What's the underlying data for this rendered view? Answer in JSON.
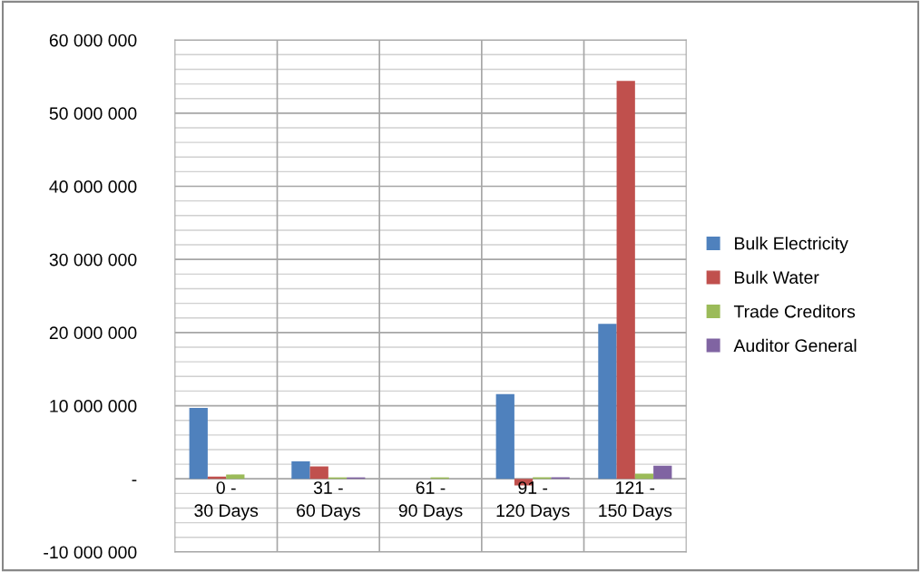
{
  "chart_data": {
    "type": "bar",
    "categories": [
      "0 -\n30 Days",
      "31 -\n60 Days",
      "61 -\n90 Days",
      "91 -\n120 Days",
      "121 -\n150 Days"
    ],
    "series": [
      {
        "name": "Bulk Electricity",
        "color": "#4f81bd",
        "values": [
          9700000,
          2400000,
          0,
          11600000,
          21200000
        ]
      },
      {
        "name": "Bulk Water",
        "color": "#c0504d",
        "values": [
          300000,
          1700000,
          0,
          -900000,
          54400000
        ]
      },
      {
        "name": "Trade Creditors",
        "color": "#9bbb59",
        "values": [
          600000,
          200000,
          200000,
          200000,
          700000
        ]
      },
      {
        "name": "Auditor General",
        "color": "#8064a2",
        "values": [
          0,
          200000,
          0,
          200000,
          1800000
        ]
      }
    ],
    "ylim": [
      -10000000,
      60000000
    ],
    "yticks": [
      {
        "value": -10000000,
        "label": "-10 000 000"
      },
      {
        "value": -8000000,
        "label": null
      },
      {
        "value": -6000000,
        "label": null
      },
      {
        "value": -4000000,
        "label": null
      },
      {
        "value": -2000000,
        "label": null
      },
      {
        "value": 0,
        "label": "-"
      },
      {
        "value": 2000000,
        "label": null
      },
      {
        "value": 4000000,
        "label": null
      },
      {
        "value": 6000000,
        "label": null
      },
      {
        "value": 8000000,
        "label": null
      },
      {
        "value": 10000000,
        "label": "10 000 000"
      },
      {
        "value": 12000000,
        "label": null
      },
      {
        "value": 14000000,
        "label": null
      },
      {
        "value": 16000000,
        "label": null
      },
      {
        "value": 18000000,
        "label": null
      },
      {
        "value": 20000000,
        "label": "20 000 000"
      },
      {
        "value": 22000000,
        "label": null
      },
      {
        "value": 24000000,
        "label": null
      },
      {
        "value": 26000000,
        "label": null
      },
      {
        "value": 28000000,
        "label": null
      },
      {
        "value": 30000000,
        "label": "30 000 000"
      },
      {
        "value": 32000000,
        "label": null
      },
      {
        "value": 34000000,
        "label": null
      },
      {
        "value": 36000000,
        "label": null
      },
      {
        "value": 38000000,
        "label": null
      },
      {
        "value": 40000000,
        "label": "40 000 000"
      },
      {
        "value": 42000000,
        "label": null
      },
      {
        "value": 44000000,
        "label": null
      },
      {
        "value": 46000000,
        "label": null
      },
      {
        "value": 48000000,
        "label": null
      },
      {
        "value": 50000000,
        "label": "50 000 000"
      },
      {
        "value": 52000000,
        "label": null
      },
      {
        "value": 54000000,
        "label": null
      },
      {
        "value": 56000000,
        "label": null
      },
      {
        "value": 58000000,
        "label": null
      },
      {
        "value": 60000000,
        "label": "60 000 000"
      }
    ],
    "grid": true,
    "legend": "right"
  }
}
